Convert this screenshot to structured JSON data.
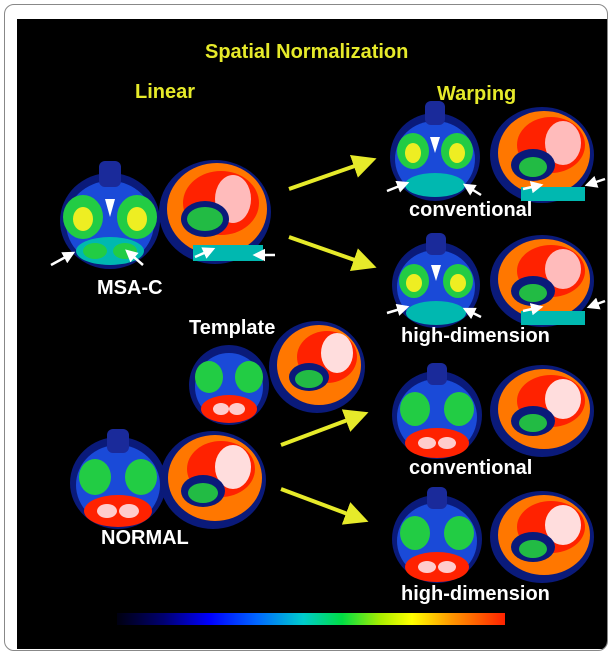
{
  "title": "Spatial Normalization",
  "labels": {
    "linear": "Linear",
    "warping": "Warping",
    "msa_c": "MSA-C",
    "template": "Template",
    "normal": "NORMAL",
    "conventional_1": "conventional",
    "high_dimension_1": "high-dimension",
    "conventional_2": "conventional",
    "high_dimension_2": "high-dimension"
  },
  "colors": {
    "title_yellow": "#e6ea2a",
    "arrow_yellow": "#e6ea2a",
    "background": "#000000"
  }
}
